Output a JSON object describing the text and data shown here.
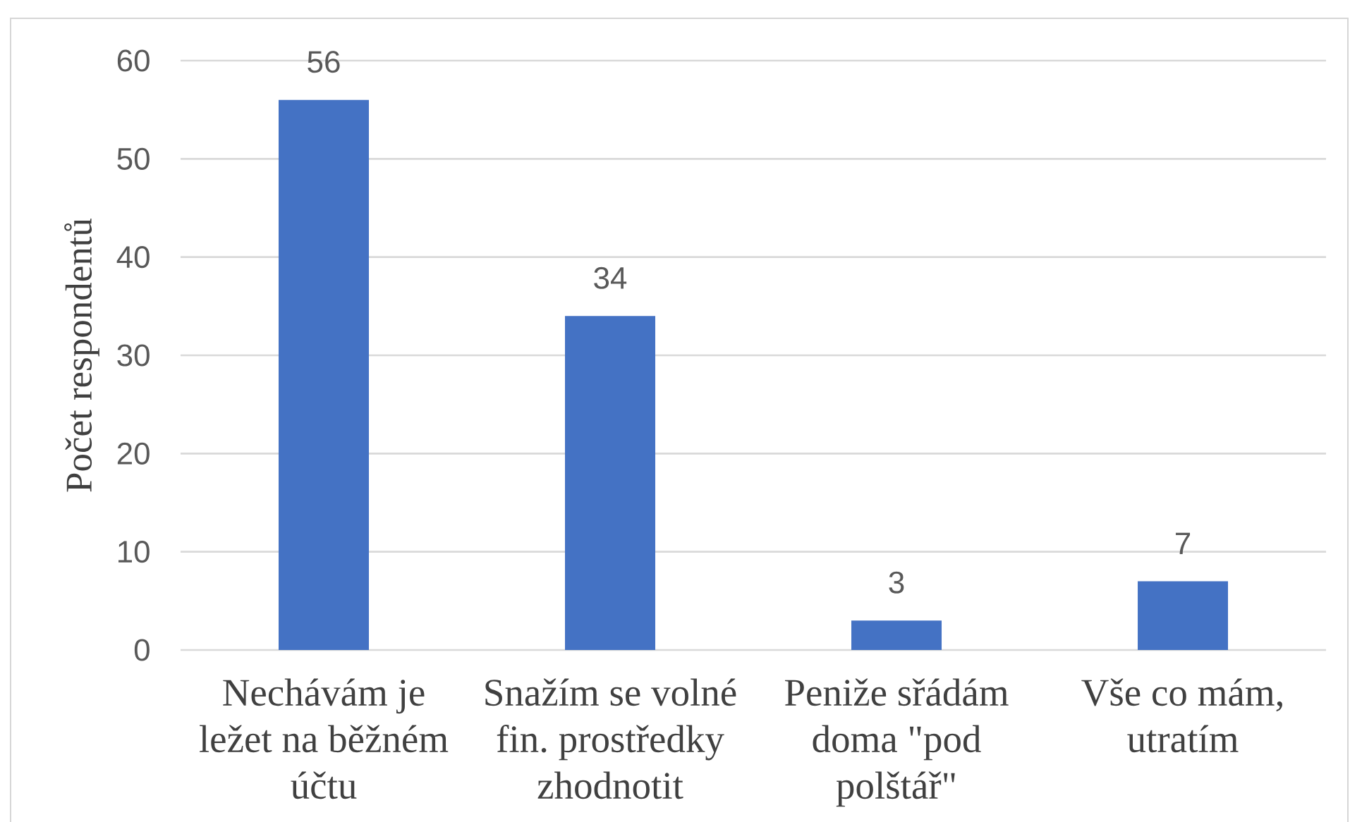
{
  "chart_data": {
    "type": "bar",
    "ylabel": "Počet respondentů",
    "categories": [
      "Nechávám je ležet na běžném účtu",
      "Snažím se volné fin. prostředky zhodnotit",
      "Peniže sřádám doma \"pod polštář\"",
      "Vše co mám, utratím"
    ],
    "values": [
      56,
      34,
      3,
      7
    ],
    "color": "#4472c4",
    "ylim": [
      0,
      60
    ],
    "yticks": [
      0,
      10,
      20,
      30,
      40,
      50,
      60
    ],
    "grid": "y",
    "data_labels": true
  }
}
